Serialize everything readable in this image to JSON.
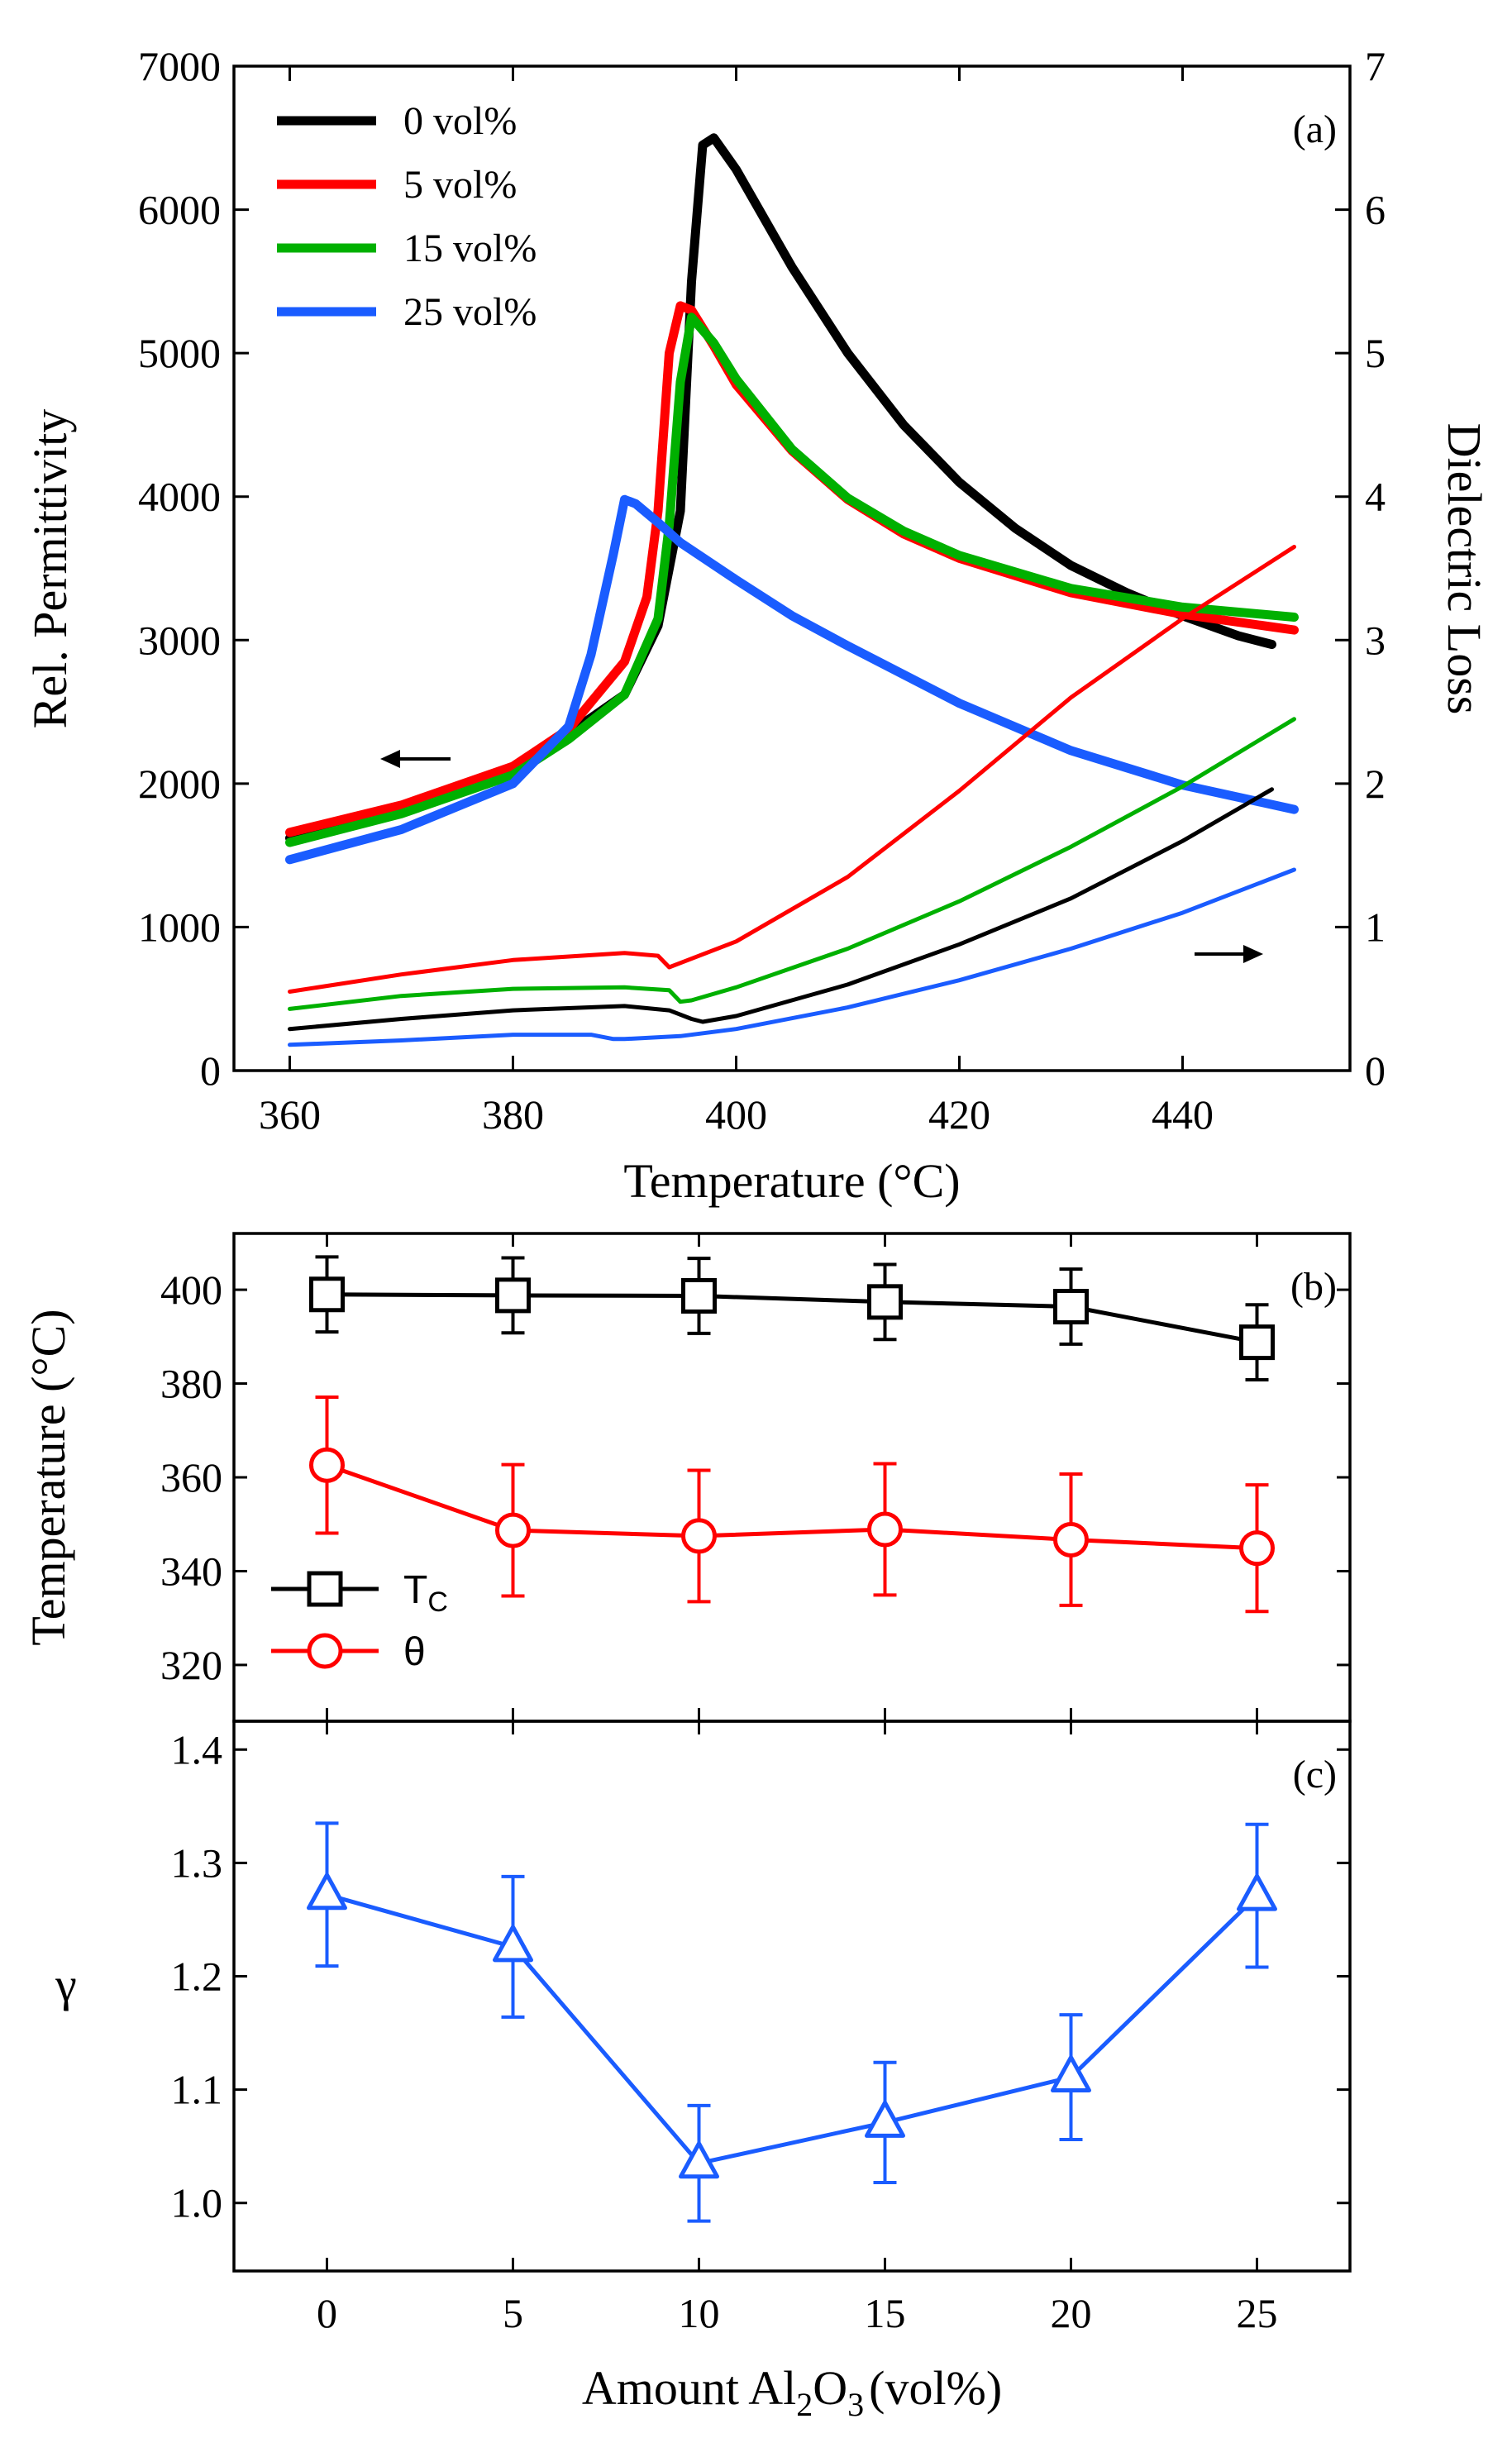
{
  "chart_data": [
    {
      "panel": "(a)",
      "type": "line",
      "xlabel": "Temperature (°C)",
      "ylabel": "Rel. Permittivity",
      "y2label": "Dielectric Loss",
      "xlim": [
        355,
        455
      ],
      "ylim": [
        0,
        7000
      ],
      "y2lim": [
        0,
        7
      ],
      "xticks": [
        360,
        380,
        400,
        420,
        440
      ],
      "yticks": [
        0,
        1000,
        2000,
        3000,
        4000,
        5000,
        6000,
        7000
      ],
      "y2ticks": [
        0,
        1,
        2,
        3,
        4,
        5,
        6,
        7
      ],
      "legend": [
        "0 vol%",
        "5 vol%",
        "15 vol%",
        "25 vol%"
      ],
      "legend_position": "top-left",
      "series": [
        {
          "name": "0 vol%",
          "axis": "permittivity",
          "color": "#000000",
          "x": [
            360,
            370,
            380,
            390,
            393,
            395,
            396,
            397,
            398,
            400,
            405,
            410,
            415,
            420,
            425,
            430,
            435,
            440,
            445,
            448
          ],
          "values": [
            1620,
            1800,
            2080,
            2620,
            3100,
            3900,
            5500,
            6450,
            6500,
            6280,
            5600,
            5000,
            4500,
            4100,
            3780,
            3520,
            3330,
            3170,
            3030,
            2970
          ]
        },
        {
          "name": "5 vol%",
          "axis": "permittivity",
          "color": "#ff0000",
          "x": [
            360,
            370,
            380,
            385,
            390,
            392,
            393,
            394,
            395,
            396,
            398,
            400,
            405,
            410,
            415,
            420,
            430,
            440,
            450
          ],
          "values": [
            1660,
            1850,
            2120,
            2380,
            2850,
            3300,
            3900,
            5000,
            5330,
            5300,
            5050,
            4780,
            4320,
            3980,
            3740,
            3570,
            3330,
            3180,
            3070
          ]
        },
        {
          "name": "15 vol%",
          "axis": "permittivity",
          "color": "#00b000",
          "x": [
            360,
            370,
            380,
            385,
            390,
            393,
            394,
            395,
            396,
            398,
            400,
            405,
            410,
            415,
            420,
            430,
            440,
            450
          ],
          "values": [
            1590,
            1790,
            2060,
            2310,
            2620,
            3150,
            3800,
            4800,
            5250,
            5070,
            4820,
            4330,
            3990,
            3760,
            3590,
            3360,
            3230,
            3160
          ]
        },
        {
          "name": "25 vol%",
          "axis": "permittivity",
          "color": "#1a5cff",
          "x": [
            360,
            370,
            380,
            385,
            387,
            389,
            390,
            391,
            393,
            395,
            400,
            405,
            410,
            420,
            430,
            440,
            450
          ],
          "values": [
            1470,
            1680,
            2000,
            2400,
            2900,
            3600,
            3980,
            3950,
            3820,
            3680,
            3420,
            3170,
            2960,
            2560,
            2230,
            1990,
            1820
          ]
        },
        {
          "name": "5 vol%",
          "axis": "loss",
          "color": "#ff0000",
          "x": [
            360,
            370,
            380,
            390,
            393,
            394,
            395,
            400,
            410,
            420,
            430,
            440,
            450
          ],
          "values": [
            0.55,
            0.67,
            0.77,
            0.82,
            0.8,
            0.72,
            0.75,
            0.9,
            1.35,
            1.95,
            2.6,
            3.15,
            3.65
          ]
        },
        {
          "name": "15 vol%",
          "axis": "loss",
          "color": "#00b000",
          "x": [
            360,
            370,
            380,
            390,
            394,
            395,
            396,
            400,
            410,
            420,
            430,
            440,
            450
          ],
          "values": [
            0.43,
            0.52,
            0.57,
            0.58,
            0.56,
            0.48,
            0.49,
            0.58,
            0.85,
            1.18,
            1.56,
            1.98,
            2.45
          ]
        },
        {
          "name": "0 vol%",
          "axis": "loss",
          "color": "#000000",
          "x": [
            360,
            370,
            380,
            390,
            394,
            396,
            397,
            400,
            410,
            420,
            430,
            440,
            448
          ],
          "values": [
            0.29,
            0.36,
            0.42,
            0.45,
            0.42,
            0.36,
            0.34,
            0.38,
            0.6,
            0.88,
            1.2,
            1.6,
            1.96
          ]
        },
        {
          "name": "25 vol%",
          "axis": "loss",
          "color": "#1a5cff",
          "x": [
            360,
            370,
            380,
            387,
            389,
            390,
            395,
            400,
            410,
            420,
            430,
            440,
            450
          ],
          "values": [
            0.18,
            0.21,
            0.25,
            0.25,
            0.22,
            0.22,
            0.24,
            0.29,
            0.44,
            0.63,
            0.85,
            1.1,
            1.4
          ]
        }
      ],
      "annotations": [
        "(a)"
      ]
    },
    {
      "panel": "(b)",
      "type": "line",
      "xlabel": "Amount Al2O3 (vol%)",
      "ylabel": "Temperature (°C)",
      "xlim": [
        -2.5,
        27.5
      ],
      "ylim": [
        308,
        412
      ],
      "xticks": [
        0,
        5,
        10,
        15,
        20,
        25
      ],
      "yticks": [
        320,
        340,
        360,
        380,
        400
      ],
      "legend_position": "bottom-left",
      "series": [
        {
          "name": "TC",
          "label_main": "T",
          "label_sub": "C",
          "marker": "square",
          "color": "#000000",
          "x": [
            0,
            5,
            10,
            15,
            20,
            25
          ],
          "values": [
            399,
            398.8,
            398.7,
            397.4,
            396.4,
            388.8
          ],
          "errors": [
            8,
            8,
            8,
            8,
            8,
            8
          ]
        },
        {
          "name": "θ",
          "label_main": "θ",
          "label_sub": "",
          "marker": "circle",
          "color": "#ff0000",
          "x": [
            0,
            5,
            10,
            15,
            20,
            25
          ],
          "values": [
            362.6,
            348.7,
            347.5,
            348.9,
            346.7,
            344.9
          ],
          "errors": [
            14.5,
            14,
            14,
            14,
            14,
            13.5
          ]
        }
      ],
      "annotations": [
        "(b)"
      ]
    },
    {
      "panel": "(c)",
      "type": "line",
      "xlabel": "Amount Al2O3 (vol%)",
      "ylabel": "γ",
      "xlim": [
        -2.5,
        27.5
      ],
      "ylim": [
        0.94,
        1.425
      ],
      "xticks": [
        0,
        5,
        10,
        15,
        20,
        25
      ],
      "yticks": [
        1.0,
        1.1,
        1.2,
        1.3,
        1.4
      ],
      "series": [
        {
          "name": "γ",
          "marker": "triangle",
          "color": "#1a5cff",
          "x": [
            0,
            5,
            10,
            15,
            20,
            25
          ],
          "values": [
            1.272,
            1.226,
            1.035,
            1.071,
            1.111,
            1.271
          ],
          "errors": [
            0.063,
            0.062,
            0.051,
            0.053,
            0.055,
            0.063
          ]
        }
      ],
      "annotations": [
        "(c)"
      ]
    }
  ],
  "labels": {
    "a_ylabel": "Rel. Permittivity",
    "a_y2label": "Dielectric Loss",
    "a_xlabel": "Temperature (°C)",
    "a_panel": "(a)",
    "b_ylabel": "Temperature (°C)",
    "b_panel": "(b)",
    "c_ylabel": "γ",
    "c_panel": "(c)",
    "x_label_pre": "Amount Al",
    "x_label_sub1": "2",
    "x_label_mid": "O",
    "x_label_sub2": "3",
    "x_label_post": "(vol%)"
  }
}
